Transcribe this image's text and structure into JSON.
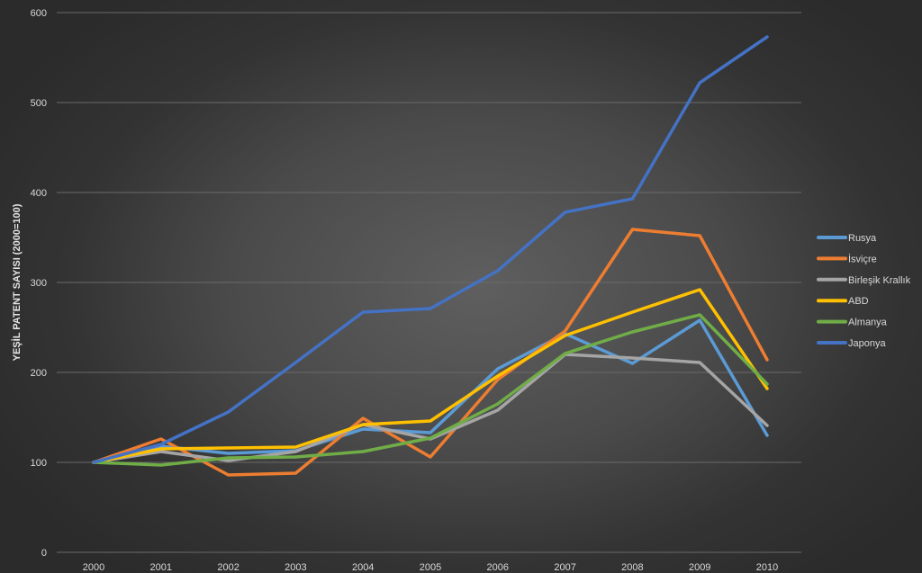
{
  "chart_data": {
    "type": "line",
    "title": "",
    "xlabel": "",
    "ylabel": "YEŞİL PATENT SAYISI (2000=100)",
    "ylim": [
      0,
      600
    ],
    "yticks": [
      0,
      100,
      200,
      300,
      400,
      500,
      600
    ],
    "grid": true,
    "legend": "right",
    "categories": [
      "2000",
      "2001",
      "2002",
      "2003",
      "2004",
      "2005",
      "2006",
      "2007",
      "2008",
      "2009",
      "2010"
    ],
    "series": [
      {
        "name": "Rusya",
        "color": "#5b9bd5",
        "values": [
          100,
          118,
          110,
          113,
          137,
          133,
          204,
          243,
          210,
          258,
          130
        ]
      },
      {
        "name": "İsviçre",
        "color": "#ed7d31",
        "values": [
          100,
          126,
          86,
          88,
          149,
          106,
          192,
          246,
          359,
          352,
          214
        ]
      },
      {
        "name": "Birleşik Krallık",
        "color": "#a5a5a5",
        "values": [
          100,
          112,
          102,
          112,
          142,
          126,
          158,
          220,
          216,
          211,
          141
        ]
      },
      {
        "name": "ABD",
        "color": "#ffc000",
        "values": [
          100,
          115,
          116,
          117,
          142,
          146,
          196,
          241,
          267,
          292,
          182
        ]
      },
      {
        "name": "Almanya",
        "color": "#70ad47",
        "values": [
          100,
          97,
          105,
          106,
          112,
          127,
          165,
          221,
          245,
          264,
          187
        ]
      },
      {
        "name": "Japonya",
        "color": "#4472c4",
        "values": [
          100,
          120,
          156,
          211,
          267,
          271,
          313,
          378,
          393,
          522,
          573
        ]
      }
    ]
  }
}
